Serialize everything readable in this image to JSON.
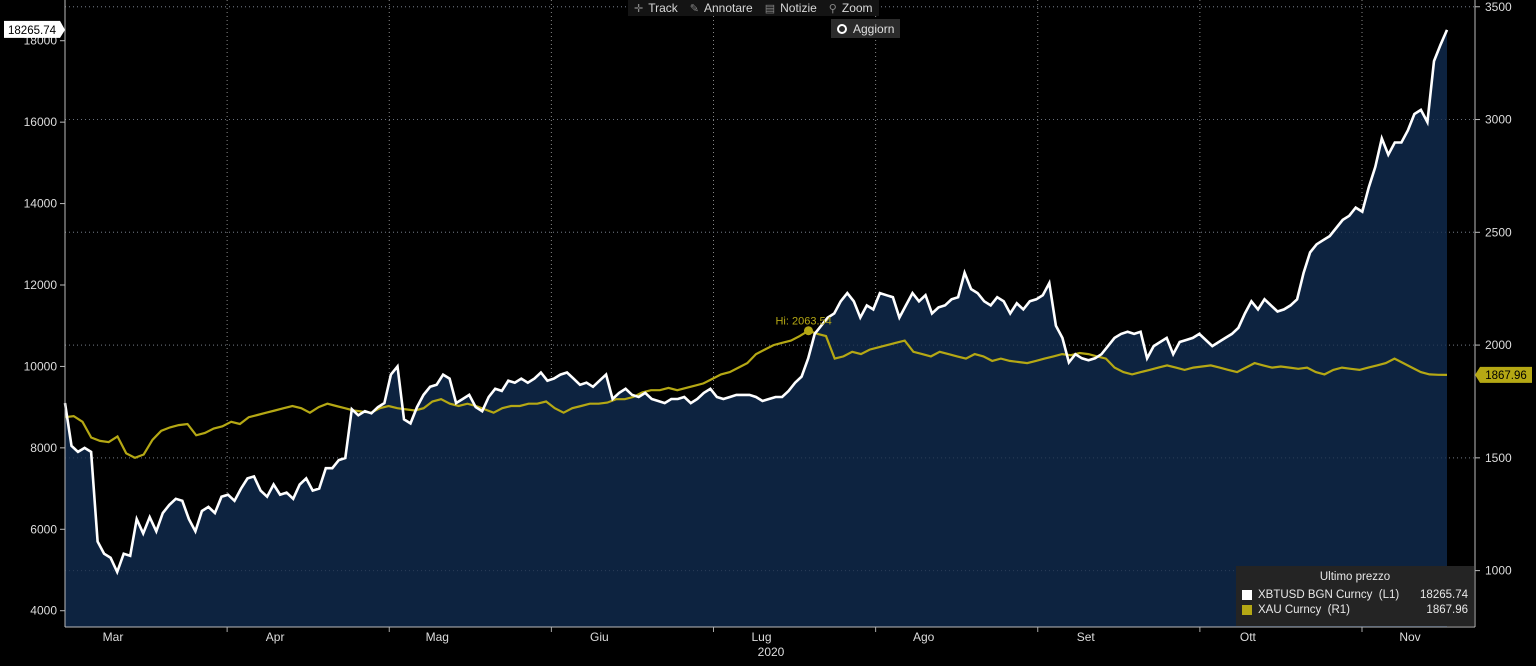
{
  "toolbar": {
    "track": "Track",
    "track_icon": "crosshair-icon",
    "annotate": "Annotare",
    "annotate_icon": "pencil-icon",
    "news": "Notizie",
    "news_icon": "news-icon",
    "zoom": "Zoom",
    "zoom_icon": "magnifier-icon",
    "refresh": "Aggiorn"
  },
  "legend": {
    "header": "Ultimo prezzo",
    "items": [
      {
        "name": "XBTUSD BGN Curncy  (L1)",
        "value": "18265.74",
        "color": "#ffffff"
      },
      {
        "name": "XAU Curncy  (R1)",
        "value": "1867.96",
        "color": "#b5a814"
      }
    ]
  },
  "chart_data": {
    "type": "line",
    "x_ticks": [
      "Mar",
      "Apr",
      "Mag",
      "Giu",
      "Lug",
      "Ago",
      "Set",
      "Ott",
      "Nov"
    ],
    "x_year_label": "2020",
    "left_axis": {
      "ticks": [
        "4000",
        "6000",
        "8000",
        "10000",
        "12000",
        "14000",
        "16000",
        "18000"
      ],
      "range": [
        3600,
        19000
      ]
    },
    "right_axis": {
      "ticks": [
        "1000",
        "1500",
        "2000",
        "2500",
        "3000",
        "3500"
      ],
      "range": [
        750,
        3530
      ]
    },
    "series": [
      {
        "name": "XBTUSD BGN Curncy",
        "axis": "left",
        "color": "#ffffff",
        "fill": "#0d2340",
        "last_label": "18265.74",
        "values": [
          9100,
          8050,
          7900,
          8000,
          7900,
          5700,
          5400,
          5300,
          4950,
          5400,
          5350,
          6250,
          5900,
          6300,
          5950,
          6400,
          6600,
          6750,
          6700,
          6250,
          5950,
          6450,
          6550,
          6400,
          6800,
          6850,
          6700,
          7000,
          7250,
          7300,
          6950,
          6800,
          7100,
          6850,
          6900,
          6750,
          7100,
          7250,
          6950,
          7000,
          7500,
          7500,
          7700,
          7750,
          8950,
          8800,
          8900,
          8850,
          9000,
          9100,
          9800,
          10000,
          8700,
          8600,
          9000,
          9300,
          9500,
          9550,
          9800,
          9700,
          9100,
          9200,
          9300,
          9000,
          8900,
          9250,
          9450,
          9400,
          9650,
          9600,
          9700,
          9600,
          9700,
          9850,
          9650,
          9700,
          9800,
          9850,
          9700,
          9550,
          9600,
          9500,
          9650,
          9800,
          9200,
          9350,
          9450,
          9300,
          9250,
          9350,
          9200,
          9150,
          9100,
          9200,
          9200,
          9250,
          9100,
          9200,
          9350,
          9450,
          9250,
          9200,
          9250,
          9300,
          9300,
          9300,
          9250,
          9150,
          9200,
          9250,
          9250,
          9400,
          9600,
          9750,
          10200,
          10800,
          11000,
          11200,
          11300,
          11600,
          11800,
          11600,
          11200,
          11500,
          11400,
          11800,
          11750,
          11700,
          11200,
          11500,
          11800,
          11600,
          11750,
          11300,
          11450,
          11500,
          11650,
          11700,
          12300,
          11900,
          11800,
          11600,
          11500,
          11700,
          11600,
          11300,
          11550,
          11400,
          11600,
          11650,
          11750,
          12050,
          11000,
          10700,
          10100,
          10300,
          10200,
          10150,
          10200,
          10300,
          10500,
          10700,
          10800,
          10850,
          10800,
          10850,
          10200,
          10500,
          10600,
          10700,
          10300,
          10600,
          10650,
          10700,
          10800,
          10650,
          10500,
          10600,
          10700,
          10800,
          10950,
          11300,
          11600,
          11400,
          11650,
          11500,
          11350,
          11400,
          11500,
          11650,
          12300,
          12800,
          13000,
          13100,
          13200,
          13400,
          13600,
          13700,
          13900,
          13800,
          14400,
          14900,
          15600,
          15200,
          15500,
          15500,
          15800,
          16200,
          16300,
          16000,
          17500,
          17900,
          18265.74
        ]
      },
      {
        "name": "XAU Curncy",
        "axis": "right",
        "color": "#b5a814",
        "last_label": "1867.96",
        "annotation": {
          "label": "Hi: 2063.54",
          "value": 2063.54,
          "index": 85
        },
        "values": [
          1680,
          1685,
          1660,
          1590,
          1575,
          1570,
          1595,
          1520,
          1500,
          1515,
          1580,
          1620,
          1635,
          1645,
          1650,
          1600,
          1610,
          1630,
          1640,
          1660,
          1650,
          1680,
          1690,
          1700,
          1710,
          1720,
          1730,
          1720,
          1700,
          1725,
          1740,
          1730,
          1720,
          1710,
          1705,
          1700,
          1720,
          1730,
          1720,
          1715,
          1710,
          1720,
          1750,
          1760,
          1740,
          1730,
          1740,
          1730,
          1715,
          1700,
          1720,
          1730,
          1730,
          1740,
          1740,
          1750,
          1720,
          1700,
          1720,
          1730,
          1740,
          1740,
          1745,
          1760,
          1760,
          1770,
          1790,
          1800,
          1800,
          1810,
          1800,
          1810,
          1820,
          1830,
          1850,
          1870,
          1880,
          1900,
          1920,
          1960,
          1980,
          2000,
          2010,
          2020,
          2040,
          2063.54,
          2050,
          2040,
          1940,
          1950,
          1970,
          1960,
          1980,
          1990,
          2000,
          2010,
          2020,
          1970,
          1960,
          1950,
          1970,
          1960,
          1950,
          1940,
          1960,
          1950,
          1930,
          1940,
          1930,
          1925,
          1920,
          1930,
          1940,
          1950,
          1960,
          1955,
          1965,
          1960,
          1950,
          1940,
          1900,
          1880,
          1870,
          1880,
          1890,
          1900,
          1910,
          1900,
          1890,
          1900,
          1905,
          1910,
          1900,
          1890,
          1880,
          1900,
          1920,
          1910,
          1900,
          1905,
          1900,
          1895,
          1900,
          1880,
          1870,
          1890,
          1900,
          1895,
          1890,
          1900,
          1910,
          1920,
          1940,
          1920,
          1900,
          1880,
          1870,
          1868,
          1867.96
        ]
      }
    ]
  }
}
